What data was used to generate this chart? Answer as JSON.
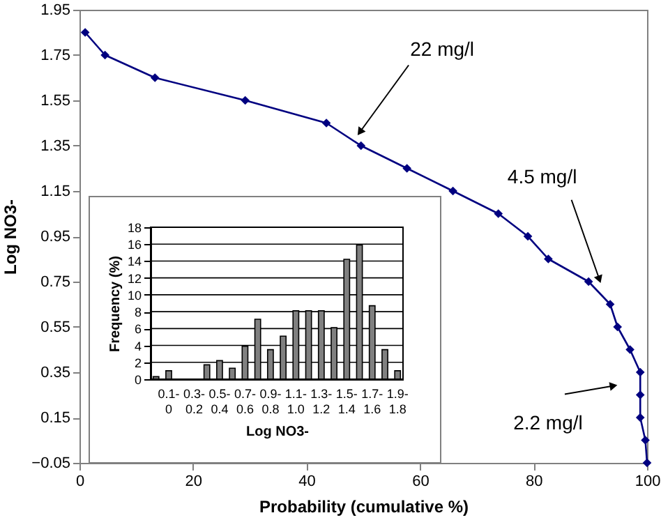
{
  "chart_data": [
    {
      "type": "line",
      "xlabel": "Probability (cumulative %)",
      "ylabel": "Log NO3-",
      "marker": "diamond",
      "grid": false,
      "x": [
        1,
        4.5,
        13.3,
        29.2,
        43.5,
        49.6,
        57.7,
        65.8,
        73.8,
        79,
        82.6,
        89.7,
        93.5,
        94.8,
        97,
        98.8,
        98.8,
        98.8,
        99.7,
        100
      ],
      "series": [
        {
          "color": "#000080",
          "values": [
            1.85,
            1.75,
            1.65,
            1.55,
            1.45,
            1.35,
            1.25,
            1.15,
            1.05,
            0.95,
            0.85,
            0.75,
            0.65,
            0.55,
            0.45,
            0.35,
            0.25,
            0.15,
            0.05,
            -0.05
          ]
        }
      ],
      "xlim": [
        0,
        100
      ],
      "ylim": [
        -0.05,
        1.95
      ],
      "xticks": [
        0,
        20,
        40,
        60,
        80,
        100
      ],
      "yticks": [
        -0.05,
        0.15,
        0.35,
        0.55,
        0.75,
        0.95,
        1.15,
        1.35,
        1.55,
        1.75,
        1.95
      ],
      "annotations": [
        {
          "text": "22 mg/l",
          "x": 49.4,
          "y": 1.41
        },
        {
          "text": "4.5 mg/l",
          "x": 91.6,
          "y": 0.76
        },
        {
          "text": "2.2 mg/l",
          "x": 94.1,
          "y": 0.29
        }
      ]
    },
    {
      "type": "bar",
      "xlabel": "Log NO3-",
      "ylabel": "Frequency (%)",
      "grid": "y",
      "color": "#808080",
      "categories": [
        null,
        "0.1-0",
        null,
        "0.3-0.2",
        null,
        "0.5-0.4",
        null,
        "0.7-0.6",
        null,
        "0.9-0.8",
        null,
        "1.1-1.0",
        null,
        "1.3-1.2",
        null,
        "1.5-1.4",
        null,
        "1.7-1.6",
        null,
        "1.9-1.8"
      ],
      "values": [
        0.3,
        1.0,
        null,
        null,
        1.7,
        2.2,
        1.3,
        3.9,
        7.1,
        3.5,
        5.1,
        8.1,
        8.1,
        8.1,
        6.1,
        14.2,
        15.9,
        8.7,
        3.5,
        1.0
      ],
      "ylim": [
        0,
        18
      ],
      "yticks": [
        0,
        2,
        4,
        6,
        8,
        10,
        12,
        14,
        16,
        18
      ]
    }
  ]
}
